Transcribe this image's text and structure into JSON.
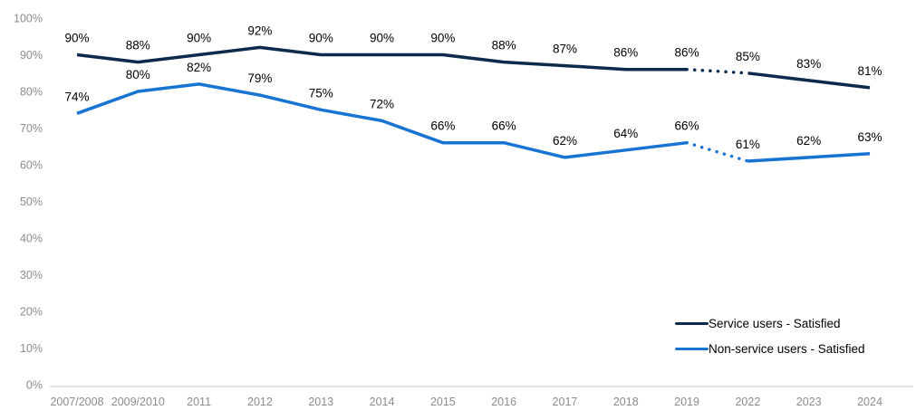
{
  "chart_data": {
    "type": "line",
    "title": "",
    "xlabel": "",
    "ylabel": "",
    "x": [
      "2007/2008",
      "2009/2010",
      "2011",
      "2012",
      "2013",
      "2014",
      "2015",
      "2016",
      "2017",
      "2018",
      "2019",
      "2022",
      "2023",
      "2024"
    ],
    "series": [
      {
        "name": "Service users - Satisfied",
        "color": "#0d2a4d",
        "values": [
          90,
          88,
          90,
          92,
          90,
          90,
          90,
          88,
          87,
          86,
          86,
          85,
          83,
          81
        ],
        "data_labels": [
          "90%",
          "88%",
          "90%",
          "92%",
          "90%",
          "90%",
          "90%",
          "88%",
          "87%",
          "86%",
          "86%",
          "85%",
          "83%",
          "81%"
        ],
        "dotted_segment_between": [
          "2019",
          "2022"
        ]
      },
      {
        "name": "Non-service users - Satisfied",
        "color": "#1874d2",
        "values": [
          74,
          80,
          82,
          79,
          75,
          72,
          66,
          66,
          62,
          64,
          66,
          61,
          62,
          63
        ],
        "data_labels": [
          "74%",
          "80%",
          "82%",
          "79%",
          "75%",
          "72%",
          "66%",
          "66%",
          "62%",
          "64%",
          "66%",
          "61%",
          "62%",
          "63%"
        ],
        "dotted_segment_between": [
          "2019",
          "2022"
        ]
      }
    ],
    "ylim": [
      0,
      100
    ],
    "ytick_step": 10,
    "ytick_labels": [
      "0%",
      "10%",
      "20%",
      "30%",
      "40%",
      "50%",
      "60%",
      "70%",
      "80%",
      "90%",
      "100%"
    ],
    "grid": false,
    "legend_position": "inside-bottom-right",
    "colors": {
      "axis_line": "#d9d9d9",
      "tick_label": "#8c8c8c",
      "data_label": "#000000"
    }
  }
}
